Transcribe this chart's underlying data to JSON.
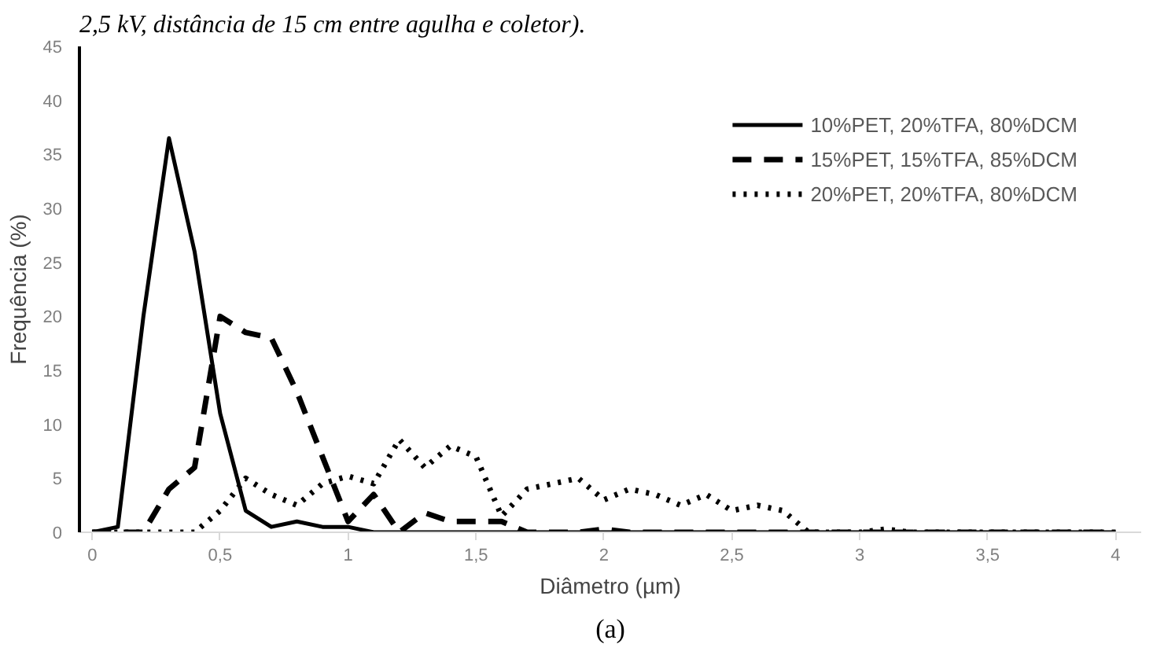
{
  "chart_data": {
    "type": "line",
    "xlabel": "Diâmetro (µm)",
    "ylabel": "Frequência (%)",
    "annotations": [
      "2,5 kV, distância de 15 cm entre agulha e coletor).",
      "(a)"
    ],
    "x": [
      0,
      0.1,
      0.2,
      0.3,
      0.4,
      0.5,
      0.6,
      0.7,
      0.8,
      0.9,
      1,
      1.1,
      1.2,
      1.3,
      1.4,
      1.5,
      1.6,
      1.7,
      1.8,
      1.9,
      2,
      2.1,
      2.2,
      2.3,
      2.4,
      2.5,
      2.6,
      2.7,
      2.8,
      2.9,
      3,
      3.1,
      3.2,
      3.3,
      3.4,
      3.5,
      3.6,
      3.7,
      3.8,
      3.9,
      4
    ],
    "series": [
      {
        "name": "10%PET, 20%TFA, 80%DCM",
        "color": "#000000",
        "line_style": "solid",
        "values": [
          0,
          0.5,
          20,
          36.5,
          26,
          11,
          2,
          0.5,
          1,
          0.5,
          0.5,
          0,
          0,
          0,
          0,
          0,
          0,
          0,
          0,
          0,
          0,
          0,
          0,
          0,
          0,
          0,
          0,
          0,
          0,
          0,
          0,
          0,
          0,
          0,
          0,
          0,
          0,
          0,
          0,
          0,
          0
        ]
      },
      {
        "name": "15%PET, 15%TFA, 85%DCM",
        "color": "#000000",
        "line_style": "dashed",
        "values": [
          0,
          0,
          0,
          4,
          6,
          20,
          18.5,
          18,
          13,
          7,
          1,
          3.5,
          0,
          1.8,
          1,
          1,
          1,
          0,
          0,
          0,
          0.3,
          0,
          0,
          0,
          0,
          0,
          0,
          0,
          0,
          0,
          0,
          0,
          0,
          0,
          0,
          0,
          0,
          0,
          0,
          0,
          0
        ]
      },
      {
        "name": "20%PET, 20%TFA, 80%DCM",
        "color": "#000000",
        "line_style": "dotted",
        "values": [
          0,
          0,
          0,
          0,
          0,
          2,
          5,
          3.5,
          2.5,
          4.5,
          5.2,
          4.5,
          8.6,
          6,
          8,
          7,
          1.5,
          4,
          4.5,
          5,
          3,
          4,
          3.5,
          2.5,
          3.5,
          2,
          2.5,
          2,
          0,
          0,
          0,
          0.3,
          0,
          0,
          0,
          0,
          0,
          0,
          0,
          0,
          0
        ]
      }
    ],
    "xlim": [
      -0.05,
      4.1
    ],
    "ylim": [
      0,
      45
    ],
    "xticks": [
      0,
      {
        "value": 0.5,
        "label": "0,5"
      },
      1,
      {
        "value": 1.5,
        "label": "1,5"
      },
      2,
      {
        "value": 2.5,
        "label": "2,5"
      },
      3,
      {
        "value": 3.5,
        "label": "3,5"
      },
      4
    ],
    "yticks": [
      0,
      5,
      10,
      15,
      20,
      25,
      30,
      35,
      40,
      45
    ],
    "grid": false,
    "legend": "top right",
    "marker": "none"
  }
}
